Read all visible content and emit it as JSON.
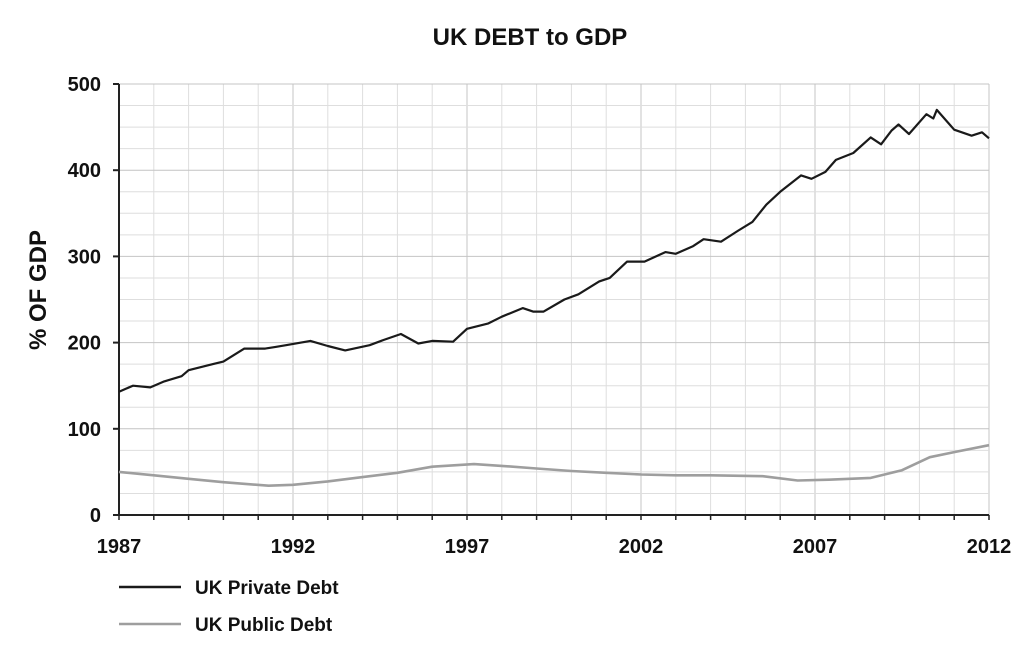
{
  "chart_data": {
    "type": "line",
    "title": "UK DEBT to GDP",
    "xlabel": "",
    "ylabel": "% OF GDP",
    "xlim": [
      1987,
      2012
    ],
    "ylim": [
      0,
      500
    ],
    "x_ticks": [
      "1987",
      "1992",
      "1997",
      "2002",
      "2007",
      "2012"
    ],
    "y_ticks": [
      "0",
      "100",
      "200",
      "300",
      "400",
      "500"
    ],
    "grid": true,
    "legend_position": "bottom-left",
    "series": [
      {
        "name": "UK Private Debt",
        "color": "#1a1a1a",
        "x": [
          1987,
          1987.4,
          1987.9,
          1988.3,
          1988.8,
          1989.0,
          1989.7,
          1990.0,
          1990.6,
          1991.2,
          1991.5,
          1991.8,
          1992.5,
          1993.0,
          1993.5,
          1994.2,
          1994.6,
          1995.1,
          1995.6,
          1996.0,
          1996.6,
          1997.0,
          1997.6,
          1998.0,
          1998.6,
          1998.9,
          1999.2,
          1999.8,
          2000.2,
          2000.8,
          2001.1,
          2001.6,
          2002.1,
          2002.7,
          2003.0,
          2003.5,
          2003.8,
          2004.3,
          2004.8,
          2005.2,
          2005.6,
          2006.0,
          2006.6,
          2006.9,
          2007.3,
          2007.6,
          2008.1,
          2008.6,
          2008.9,
          2009.2,
          2009.4,
          2009.7,
          2010.2,
          2010.4,
          2010.5,
          2011.0,
          2011.5,
          2011.8,
          2012.0
        ],
        "values": [
          143,
          150,
          148,
          155,
          161,
          168,
          175,
          178,
          193,
          193,
          195,
          197,
          202,
          196,
          191,
          197,
          203,
          210,
          199,
          202,
          201,
          216,
          222,
          230,
          240,
          236,
          236,
          250,
          256,
          271,
          275,
          294,
          294,
          305,
          303,
          312,
          320,
          317,
          330,
          340,
          360,
          375,
          394,
          390,
          398,
          412,
          420,
          438,
          430,
          446,
          453,
          442,
          465,
          460,
          470,
          447,
          440,
          444,
          437
        ]
      },
      {
        "name": "UK Public Debt",
        "color": "#9e9e9e",
        "x": [
          1987,
          1988,
          1989,
          1990,
          1991.3,
          1992,
          1993,
          1994,
          1995,
          1996,
          1997.2,
          1998,
          1999,
          2000,
          2001,
          2002,
          2003,
          2004,
          2005.5,
          2006.5,
          2007.4,
          2008.6,
          2009.5,
          2010.3,
          2011,
          2012
        ],
        "values": [
          50,
          46,
          42,
          38,
          34,
          35,
          39,
          44,
          49,
          56,
          59,
          57,
          54,
          51,
          49,
          47,
          46,
          46,
          45,
          40,
          41,
          43,
          52,
          67,
          73,
          81
        ]
      }
    ]
  }
}
